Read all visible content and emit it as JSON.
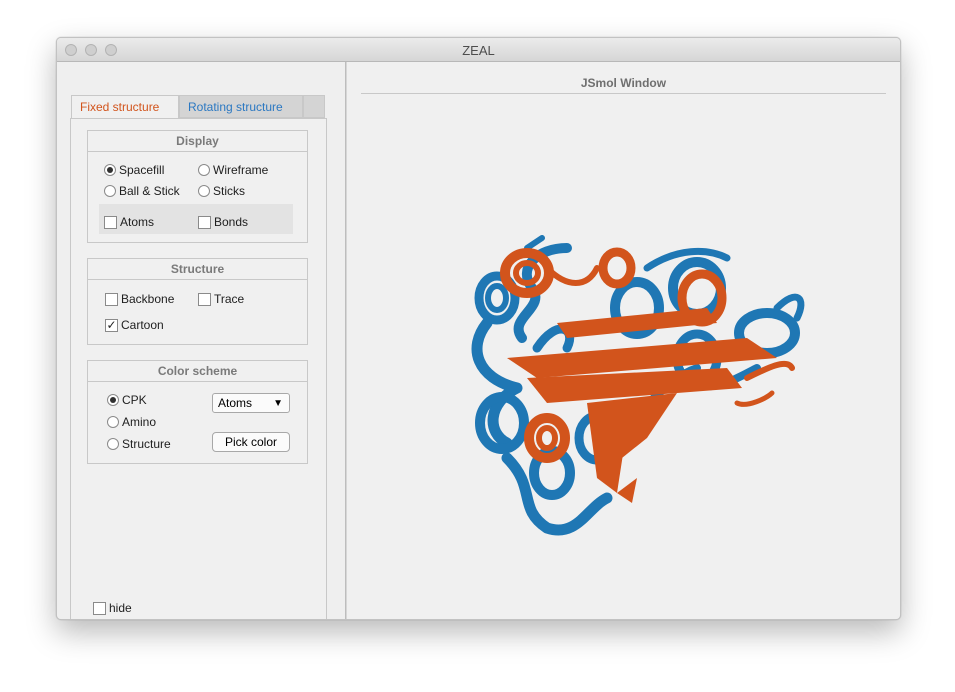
{
  "window": {
    "title": "ZEAL"
  },
  "tabs": {
    "active": "Fixed structure",
    "inactive": "Rotating structure"
  },
  "display": {
    "title": "Display",
    "options": {
      "spacefill": "Spacefill",
      "wireframe": "Wireframe",
      "ball_stick": "Ball & Stick",
      "sticks": "Sticks"
    },
    "selected": "Spacefill",
    "atoms": "Atoms",
    "bonds": "Bonds"
  },
  "structure": {
    "title": "Structure",
    "backbone": "Backbone",
    "trace": "Trace",
    "cartoon": "Cartoon",
    "cartoon_checked": true
  },
  "color_scheme": {
    "title": "Color scheme",
    "cpk": "CPK",
    "amino": "Amino",
    "structure": "Structure",
    "selected": "CPK",
    "popup_value": "Atoms",
    "pick_color": "Pick color"
  },
  "hide_label": "hide",
  "viewer": {
    "title": "JSmol Window"
  },
  "colors": {
    "fixed": "#d2541c",
    "rotating": "#1f77b4"
  }
}
